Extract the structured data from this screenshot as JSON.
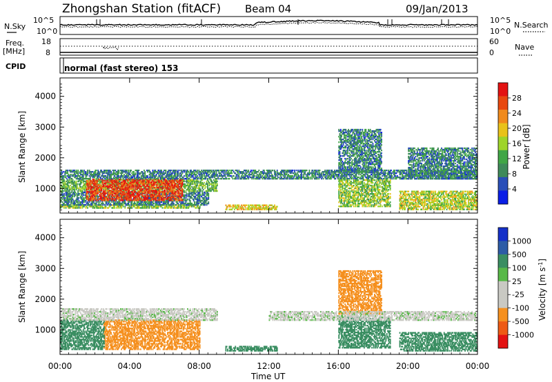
{
  "header": {
    "station_title": "Zhongshan Station (fitACF)",
    "beam": "Beam 04",
    "date": "09/Jan/2013"
  },
  "strip_panels": {
    "nsky_label": "N.Sky",
    "nsky_ticks": [
      "10^5",
      "10^0"
    ],
    "nsearch_label": "N.Search",
    "nsearch_ticks": [
      "10^5",
      "10^0"
    ],
    "freq_label": "Freq.",
    "freq_unit": "[MHz]",
    "freq_ticks": [
      "18",
      "8"
    ],
    "nave_label": "Nave",
    "nave_ticks": [
      "60",
      "0"
    ],
    "cpid_label": "CPID",
    "cpid_value": "normal (fast stereo) 153"
  },
  "power_panel": {
    "ylabel": "Slant Range [km]",
    "colorbar_label": "Power [dB]",
    "colorbar_ticks": [
      "28",
      "24",
      "20",
      "16",
      "12",
      "8",
      "4"
    ]
  },
  "velocity_panel": {
    "ylabel": "Slant Range [km]",
    "colorbar_label_main": "Velocity [m s",
    "colorbar_label_sup": "-1",
    "colorbar_label_end": "]",
    "colorbar_ticks": [
      "1000",
      "500",
      "100",
      "25",
      "-25",
      "-100",
      "-500",
      "-1000"
    ]
  },
  "xaxis": {
    "xlabel": "Time UT"
  },
  "colors": {
    "power_scale": [
      "#0a1ee6",
      "#2a4fb8",
      "#3f8a5a",
      "#41a646",
      "#9ed42a",
      "#e8c21a",
      "#f08a1c",
      "#e8480f",
      "#e31212"
    ],
    "velocity_scale": [
      "#e31212",
      "#ee5a14",
      "#f5901f",
      "#c9c9c3",
      "#c9c9c3",
      "#58b848",
      "#3a8e62",
      "#2d5ca6",
      "#1530c8"
    ],
    "trace": "#000000"
  },
  "chart_data": [
    {
      "type": "heatmap",
      "name": "Power",
      "xlabel": "Time UT",
      "ylabel": "Slant Range [km]",
      "x_ticks": [
        "00:00",
        "04:00",
        "08:00",
        "12:00",
        "16:00",
        "20:00",
        "00:00"
      ],
      "y_ticks": [
        1000,
        2000,
        3000,
        4000
      ],
      "xlim": [
        0,
        24
      ],
      "ylim": [
        200,
        4600
      ],
      "colorbar": {
        "label": "Power [dB]",
        "range": [
          0,
          30
        ],
        "ticks": [
          4,
          8,
          12,
          16,
          20,
          24,
          28
        ]
      },
      "regions": [
        {
          "t": [
            0,
            8
          ],
          "r": [
            350,
            450
          ],
          "value": 14
        },
        {
          "t": [
            0,
            8.5
          ],
          "r": [
            450,
            900
          ],
          "value": 8
        },
        {
          "t": [
            0,
            9
          ],
          "r": [
            900,
            1300
          ],
          "value": 12
        },
        {
          "t": [
            1.5,
            7
          ],
          "r": [
            600,
            1300
          ],
          "value": 26
        },
        {
          "t": [
            0,
            24
          ],
          "r": [
            1300,
            1600
          ],
          "value": 8
        },
        {
          "t": [
            9.5,
            12.5
          ],
          "r": [
            300,
            450
          ],
          "value": 18
        },
        {
          "t": [
            16,
            19
          ],
          "r": [
            400,
            1300
          ],
          "value": 14
        },
        {
          "t": [
            16,
            18.5
          ],
          "r": [
            1500,
            2900
          ],
          "value": 8
        },
        {
          "t": [
            19.5,
            24
          ],
          "r": [
            300,
            900
          ],
          "value": 16
        },
        {
          "t": [
            20,
            24
          ],
          "r": [
            1300,
            2300
          ],
          "value": 8
        }
      ]
    },
    {
      "type": "heatmap",
      "name": "Velocity",
      "xlabel": "Time UT",
      "ylabel": "Slant Range [km]",
      "x_ticks": [
        "00:00",
        "04:00",
        "08:00",
        "12:00",
        "16:00",
        "20:00",
        "00:00"
      ],
      "y_ticks": [
        1000,
        2000,
        3000,
        4000
      ],
      "xlim": [
        0,
        24
      ],
      "ylim": [
        200,
        4600
      ],
      "colorbar": {
        "label": "Velocity [m s-1]",
        "ticks": [
          1000,
          500,
          100,
          25,
          -25,
          -100,
          -500,
          -1000
        ]
      },
      "regions": [
        {
          "t": [
            2.5,
            8
          ],
          "r": [
            350,
            1300
          ],
          "value": -200
        },
        {
          "t": [
            0,
            2.5
          ],
          "r": [
            350,
            1300
          ],
          "value": 300
        },
        {
          "t": [
            0,
            9
          ],
          "r": [
            1300,
            1700
          ],
          "value": 0
        },
        {
          "t": [
            9.5,
            12.5
          ],
          "r": [
            300,
            450
          ],
          "value": 300
        },
        {
          "t": [
            16,
            19
          ],
          "r": [
            400,
            1400
          ],
          "value": 300
        },
        {
          "t": [
            16,
            18.5
          ],
          "r": [
            1500,
            2900
          ],
          "value": -200
        },
        {
          "t": [
            19.5,
            24
          ],
          "r": [
            300,
            900
          ],
          "value": 300
        },
        {
          "t": [
            12,
            24
          ],
          "r": [
            1300,
            1600
          ],
          "value": 0
        }
      ]
    }
  ]
}
